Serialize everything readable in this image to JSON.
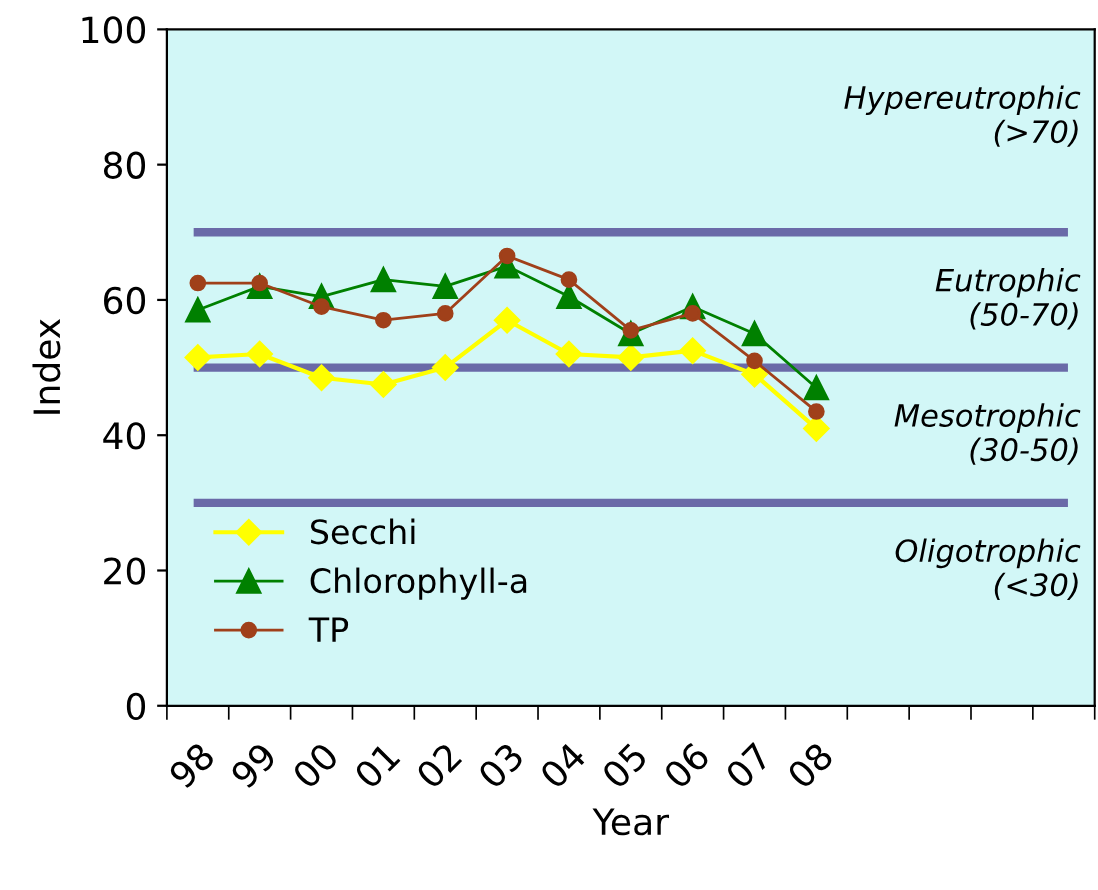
{
  "chart_data": {
    "type": "line",
    "xlabel": "Year",
    "ylabel": "Index",
    "categories": [
      "98",
      "99",
      "00",
      "01",
      "02",
      "03",
      "04",
      "05",
      "06",
      "07",
      "08",
      null,
      null,
      null,
      null
    ],
    "series": [
      {
        "name": "Secchi",
        "color": "#ffff00",
        "marker": "diamond",
        "values": [
          51.5,
          52,
          48.5,
          47.5,
          50,
          57,
          52,
          51.5,
          52.5,
          49,
          41,
          null,
          null,
          null,
          null
        ]
      },
      {
        "name": "Chlorophyll-a",
        "color": "#008000",
        "marker": "triangle",
        "values": [
          58.5,
          62,
          60.5,
          63,
          62,
          65,
          60.5,
          55,
          59,
          55,
          47,
          null,
          null,
          null,
          null
        ]
      },
      {
        "name": "TP",
        "color": "#a0401a",
        "marker": "circle",
        "values": [
          62.5,
          62.5,
          59,
          57,
          58,
          66.5,
          63,
          55.5,
          58,
          51,
          43.5,
          null,
          null,
          null,
          null
        ]
      }
    ],
    "ylim": [
      0,
      100
    ],
    "yticks": [
      0,
      20,
      40,
      60,
      80,
      100
    ],
    "ref_lines": [
      {
        "axis": "y",
        "value": 70,
        "color": "#6a6aa8"
      },
      {
        "axis": "y",
        "value": 50,
        "color": "#6a6aa8"
      },
      {
        "axis": "y",
        "value": 30,
        "color": "#6a6aa8"
      }
    ],
    "annotations": [
      "Hypereutrophic\n(>70)",
      "Eutrophic\n(50-70)",
      "Mesotrophic\n(30-50)",
      "Oligotrophic\n(<30)"
    ],
    "legend": "bottom left",
    "grid": false,
    "line_style": "solid"
  }
}
